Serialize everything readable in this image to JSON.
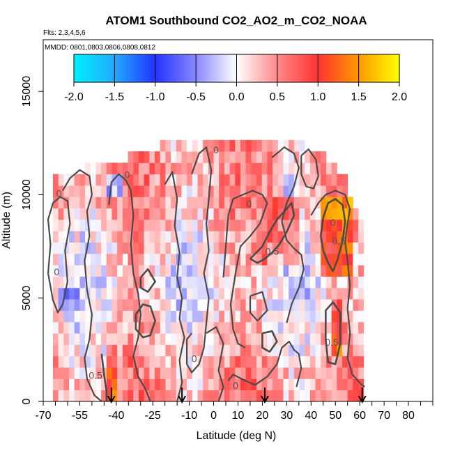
{
  "chart_data": {
    "type": "heatmap",
    "title": "ATOM1 Southbound CO2_AO2_m_CO2_NOAA",
    "subtitle_flights": "Flts: 2,3,4,5,6",
    "subtitle_dates": "MMDD: 0801,0803,0806,0808,0812",
    "xlabel": "Latitude (deg N)",
    "ylabel": "Altitude (m)",
    "xlim": [
      -70,
      90
    ],
    "ylim": [
      0,
      17500
    ],
    "x_ticks": [
      -70,
      -55,
      -40,
      -25,
      -10,
      0,
      10,
      20,
      30,
      40,
      50,
      60,
      70,
      80
    ],
    "x_tick_labels": [
      "-70",
      "-55",
      "-40",
      "-25",
      "-10",
      "0",
      "10",
      "20",
      "30",
      "40",
      "50",
      "60",
      "70",
      "80"
    ],
    "y_ticks": [
      0,
      5000,
      10000,
      15000
    ],
    "y_tick_labels": [
      "0",
      "5000",
      "10000",
      "15000"
    ],
    "colorbar": {
      "range": [
        -2.0,
        2.0
      ],
      "tick_values": [
        -2.0,
        -1.5,
        -1.0,
        -0.5,
        0.0,
        0.5,
        1.0,
        1.5,
        2.0
      ],
      "tick_labels": [
        "-2.0",
        "-1.5",
        "-1.0",
        "-0.5",
        "0.0",
        "0.5",
        "1.0",
        "1.5",
        "2.0"
      ],
      "colors": [
        "#00f0ff",
        "#2299ff",
        "#2233ff",
        "#ffffff",
        "#ff3333",
        "#ff9900",
        "#ffff00"
      ]
    },
    "contour_labels": [
      {
        "text": "0",
        "x": -63.5,
        "y": 9900
      },
      {
        "text": "0",
        "x": -64.5,
        "y": 6100
      },
      {
        "text": "0",
        "x": -35.5,
        "y": 10800
      },
      {
        "text": "0",
        "x": 1,
        "y": 12000
      },
      {
        "text": "0",
        "x": 14.5,
        "y": 9400
      },
      {
        "text": "0",
        "x": 49,
        "y": 8500
      },
      {
        "text": "0",
        "x": -8,
        "y": 1900
      },
      {
        "text": "0",
        "x": 9,
        "y": 600
      },
      {
        "text": "0.5",
        "x": 24,
        "y": 7100
      },
      {
        "text": "0.5",
        "x": -48.5,
        "y": 1100
      },
      {
        "text": "0.5",
        "x": 51.5,
        "y": 7600
      },
      {
        "text": "0.5",
        "x": 48.5,
        "y": 2700
      }
    ],
    "flight_markers_lat": [
      -42,
      -13,
      21,
      61
    ],
    "contours_zero": [
      [
        [
          -68,
          6200
        ],
        [
          -67,
          7600
        ],
        [
          -68,
          8800
        ],
        [
          -66,
          9600
        ],
        [
          -63,
          9900
        ],
        [
          -60,
          9700
        ],
        [
          -59,
          8600
        ],
        [
          -61,
          7300
        ],
        [
          -60,
          5800
        ],
        [
          -62,
          4700
        ],
        [
          -64,
          4300
        ],
        [
          -66,
          4900
        ],
        [
          -68,
          6200
        ]
      ],
      [
        [
          -62,
          10200
        ],
        [
          -59,
          10800
        ],
        [
          -55,
          11200
        ],
        [
          -51,
          10900
        ],
        [
          -50,
          10000
        ],
        [
          -52,
          9200
        ],
        [
          -51,
          8000
        ],
        [
          -53,
          6800
        ],
        [
          -52,
          5400
        ],
        [
          -50,
          4200
        ],
        [
          -51,
          3000
        ],
        [
          -53,
          2100
        ],
        [
          -52,
          1100
        ],
        [
          -49,
          300
        ],
        [
          -46,
          0
        ]
      ],
      [
        [
          -43,
          9500
        ],
        [
          -42,
          10600
        ],
        [
          -39,
          11000
        ],
        [
          -36,
          10700
        ],
        [
          -34,
          10200
        ],
        [
          -33,
          9000
        ],
        [
          -34,
          7600
        ],
        [
          -33,
          6200
        ],
        [
          -31,
          5200
        ],
        [
          -30,
          4200
        ],
        [
          -31,
          3100
        ],
        [
          -33,
          2200
        ],
        [
          -31,
          1200
        ],
        [
          -28,
          600
        ],
        [
          -26,
          0
        ]
      ],
      [
        [
          -20,
          10500
        ],
        [
          -17,
          11100
        ],
        [
          -15,
          9800
        ],
        [
          -16,
          8500
        ],
        [
          -14,
          7200
        ],
        [
          -15,
          6000
        ],
        [
          -13,
          5000
        ],
        [
          -14,
          4000
        ],
        [
          -12,
          3100
        ],
        [
          -14,
          2000
        ],
        [
          -13,
          900
        ],
        [
          -15,
          0
        ]
      ],
      [
        [
          -9,
          11000
        ],
        [
          -6,
          12000
        ],
        [
          -3,
          12300
        ],
        [
          -1,
          11200
        ],
        [
          -2,
          9800
        ],
        [
          -3,
          8600
        ],
        [
          -2,
          7300
        ],
        [
          -4,
          6200
        ],
        [
          -2,
          5000
        ],
        [
          -3,
          3800
        ],
        [
          -4,
          2600
        ],
        [
          -6,
          1800
        ],
        [
          -9,
          1400
        ],
        [
          -11,
          1800
        ],
        [
          -11,
          3000
        ],
        [
          -9,
          3300
        ]
      ],
      [
        [
          -3,
          3300
        ],
        [
          1,
          3600
        ],
        [
          4,
          2800
        ],
        [
          2,
          1500
        ],
        [
          4,
          700
        ],
        [
          2,
          0
        ]
      ],
      [
        [
          4,
          6000
        ],
        [
          5,
          7500
        ],
        [
          6,
          9000
        ],
        [
          8,
          9800
        ],
        [
          12,
          10000
        ],
        [
          16,
          10200
        ],
        [
          20,
          10000
        ],
        [
          22,
          9600
        ],
        [
          19,
          8600
        ],
        [
          15,
          8000
        ],
        [
          11,
          7500
        ],
        [
          9,
          6200
        ],
        [
          7,
          4700
        ],
        [
          8,
          3500
        ],
        [
          10,
          2800
        ],
        [
          13,
          2600
        ]
      ],
      [
        [
          6,
          1000
        ],
        [
          8,
          1300
        ],
        [
          13,
          1000
        ],
        [
          17,
          800
        ],
        [
          22,
          1200
        ],
        [
          26,
          1800
        ],
        [
          28,
          2600
        ],
        [
          31,
          2900
        ],
        [
          33,
          2500
        ],
        [
          35,
          2300
        ],
        [
          36,
          1600
        ],
        [
          34,
          700
        ]
      ],
      [
        [
          24,
          11800
        ],
        [
          29,
          12300
        ],
        [
          33,
          12000
        ],
        [
          35,
          11300
        ],
        [
          33,
          10400
        ],
        [
          30,
          9600
        ],
        [
          28,
          8700
        ],
        [
          30,
          7800
        ],
        [
          33,
          7400
        ],
        [
          36,
          7100
        ],
        [
          37,
          6400
        ],
        [
          35,
          5500
        ],
        [
          32,
          4700
        ],
        [
          30,
          3800
        ]
      ],
      [
        [
          40,
          9000
        ],
        [
          43,
          9600
        ],
        [
          46,
          10000
        ],
        [
          50,
          10200
        ],
        [
          54,
          10000
        ],
        [
          56,
          9300
        ],
        [
          55,
          8600
        ],
        [
          54,
          7700
        ],
        [
          55,
          6800
        ],
        [
          56,
          5600
        ],
        [
          55,
          4500
        ],
        [
          56,
          3300
        ],
        [
          55,
          2100
        ],
        [
          57,
          1300
        ],
        [
          60,
          900
        ],
        [
          62,
          700
        ]
      ],
      [
        [
          36,
          11900
        ],
        [
          39,
          12200
        ],
        [
          42,
          11700
        ],
        [
          43,
          10900
        ],
        [
          41,
          10300
        ],
        [
          38,
          10400
        ],
        [
          36,
          11000
        ],
        [
          36,
          11900
        ]
      ],
      [
        [
          15,
          5100
        ],
        [
          20,
          5300
        ],
        [
          22,
          4400
        ],
        [
          18,
          3900
        ],
        [
          15,
          4300
        ],
        [
          15,
          5100
        ]
      ]
    ],
    "contours_half": [
      [
        [
          -46,
          2300
        ],
        [
          -45,
          1300
        ],
        [
          -44,
          500
        ],
        [
          -44,
          0
        ]
      ],
      [
        [
          15,
          6900
        ],
        [
          20,
          7500
        ],
        [
          23,
          8200
        ],
        [
          26,
          8800
        ],
        [
          29,
          9200
        ],
        [
          32,
          9600
        ],
        [
          33,
          9000
        ],
        [
          30,
          8200
        ],
        [
          27,
          7600
        ],
        [
          24,
          7200
        ],
        [
          21,
          6900
        ],
        [
          18,
          6700
        ],
        [
          15,
          6900
        ]
      ],
      [
        [
          44,
          8000
        ],
        [
          45,
          8900
        ],
        [
          47,
          9600
        ],
        [
          50,
          9800
        ],
        [
          53,
          9500
        ],
        [
          54,
          8700
        ],
        [
          53,
          7800
        ],
        [
          51,
          6900
        ],
        [
          49,
          6300
        ],
        [
          47,
          6700
        ],
        [
          45,
          7300
        ],
        [
          44,
          8000
        ]
      ],
      [
        [
          -32,
          4200
        ],
        [
          -29,
          4700
        ],
        [
          -26,
          4600
        ],
        [
          -24,
          3900
        ],
        [
          -26,
          3200
        ],
        [
          -29,
          3100
        ],
        [
          -32,
          3500
        ],
        [
          -32,
          4200
        ]
      ],
      [
        [
          20,
          3300
        ],
        [
          24,
          3400
        ],
        [
          26,
          2900
        ],
        [
          23,
          2400
        ],
        [
          20,
          2600
        ],
        [
          20,
          3300
        ]
      ],
      [
        [
          46,
          4400
        ],
        [
          49,
          4800
        ],
        [
          52,
          4300
        ],
        [
          52,
          2800
        ],
        [
          50,
          1800
        ],
        [
          47,
          1900
        ],
        [
          46,
          3000
        ],
        [
          46,
          4400
        ]
      ],
      [
        [
          -30,
          6000
        ],
        [
          -27,
          6400
        ],
        [
          -24,
          5800
        ],
        [
          -27,
          5300
        ],
        [
          -30,
          5500
        ],
        [
          -30,
          6000
        ]
      ]
    ]
  }
}
